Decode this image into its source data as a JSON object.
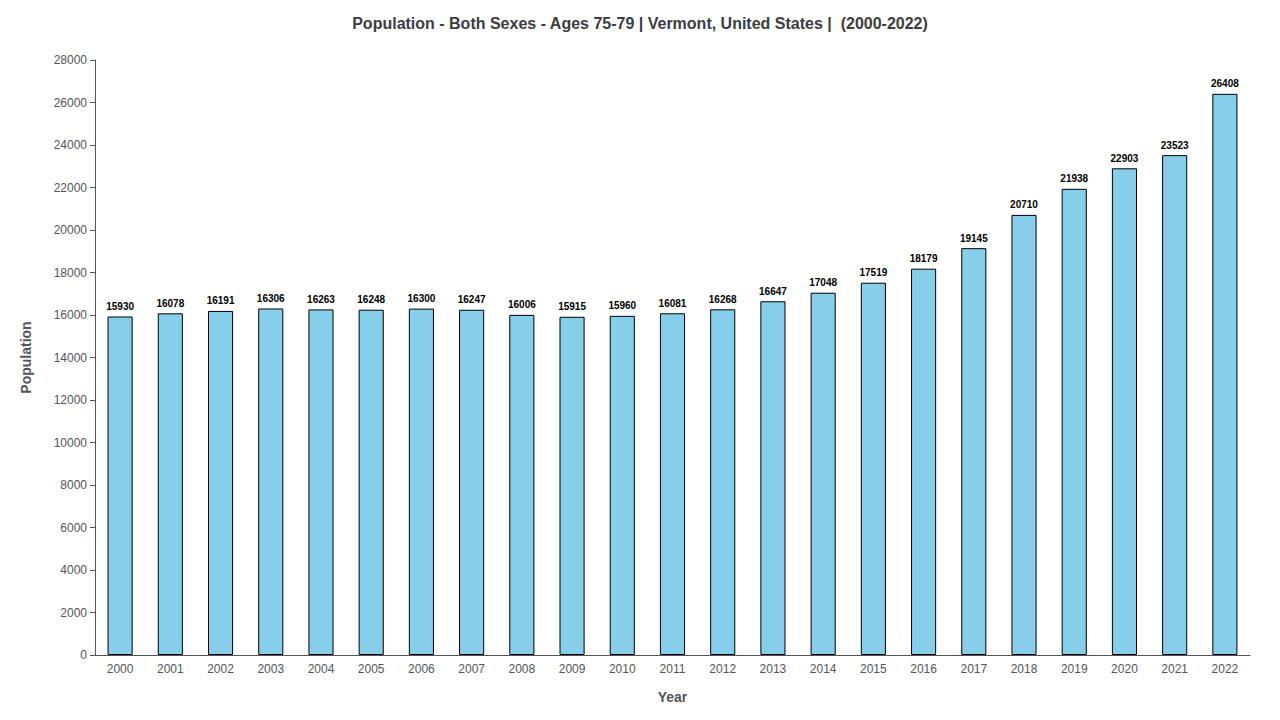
{
  "chart_data": {
    "type": "bar",
    "title": "Population - Both Sexes - Ages 75-79 | Vermont, United States |  (2000-2022)",
    "x_label": "Year",
    "y_label": "Population",
    "categories": [
      "2000",
      "2001",
      "2002",
      "2003",
      "2004",
      "2005",
      "2006",
      "2007",
      "2008",
      "2009",
      "2010",
      "2011",
      "2012",
      "2013",
      "2014",
      "2015",
      "2016",
      "2017",
      "2018",
      "2019",
      "2020",
      "2021",
      "2022"
    ],
    "values": [
      15930,
      16078,
      16191,
      16306,
      16263,
      16248,
      16300,
      16247,
      16006,
      15915,
      15960,
      16081,
      16268,
      16647,
      17048,
      17519,
      18179,
      19145,
      20710,
      21938,
      22903,
      23523,
      26408
    ],
    "color": "#87CEEB",
    "ylim": [
      0,
      28000
    ],
    "yticks": [
      0,
      2000,
      4000,
      6000,
      8000,
      10000,
      12000,
      14000,
      16000,
      18000,
      20000,
      22000,
      24000,
      26000,
      28000
    ],
    "grid": false,
    "data_labels": true
  }
}
